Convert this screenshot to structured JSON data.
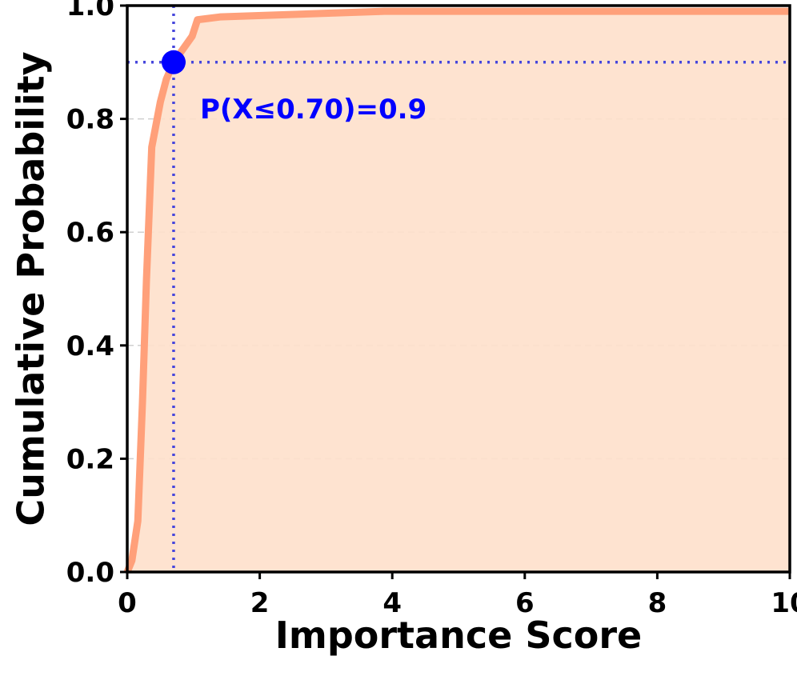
{
  "chart_data": {
    "type": "line",
    "xlabel": "Importance Score",
    "ylabel": "Cumulative Probability",
    "x": [
      0,
      0.07,
      0.16,
      0.23,
      0.29,
      0.37,
      0.5,
      0.59,
      0.7,
      0.98,
      1.06,
      1.4,
      3.88,
      10
    ],
    "series": [
      {
        "color": "#ffa07a",
        "fill_color": "#fee0cb",
        "values": [
          0,
          0.02,
          0.09,
          0.3,
          0.515,
          0.75,
          0.83,
          0.87,
          0.9,
          0.946,
          0.975,
          0.98,
          0.99,
          0.99
        ]
      }
    ],
    "annotation": {
      "text": "P(X≤0.70)=0.9",
      "x": 0.7,
      "y": 0.9,
      "color": "#0000ff",
      "line_color": "#4646dc"
    },
    "xlim": [
      0,
      10
    ],
    "ylim": [
      0,
      1
    ],
    "xticks": [
      0,
      2,
      4,
      6,
      8,
      10
    ],
    "yticks": [
      {
        "value": 0,
        "label": "0.0"
      },
      0.2,
      0.4,
      0.6,
      0.8,
      {
        "value": 1,
        "label": "1.0"
      }
    ],
    "grid": true
  }
}
